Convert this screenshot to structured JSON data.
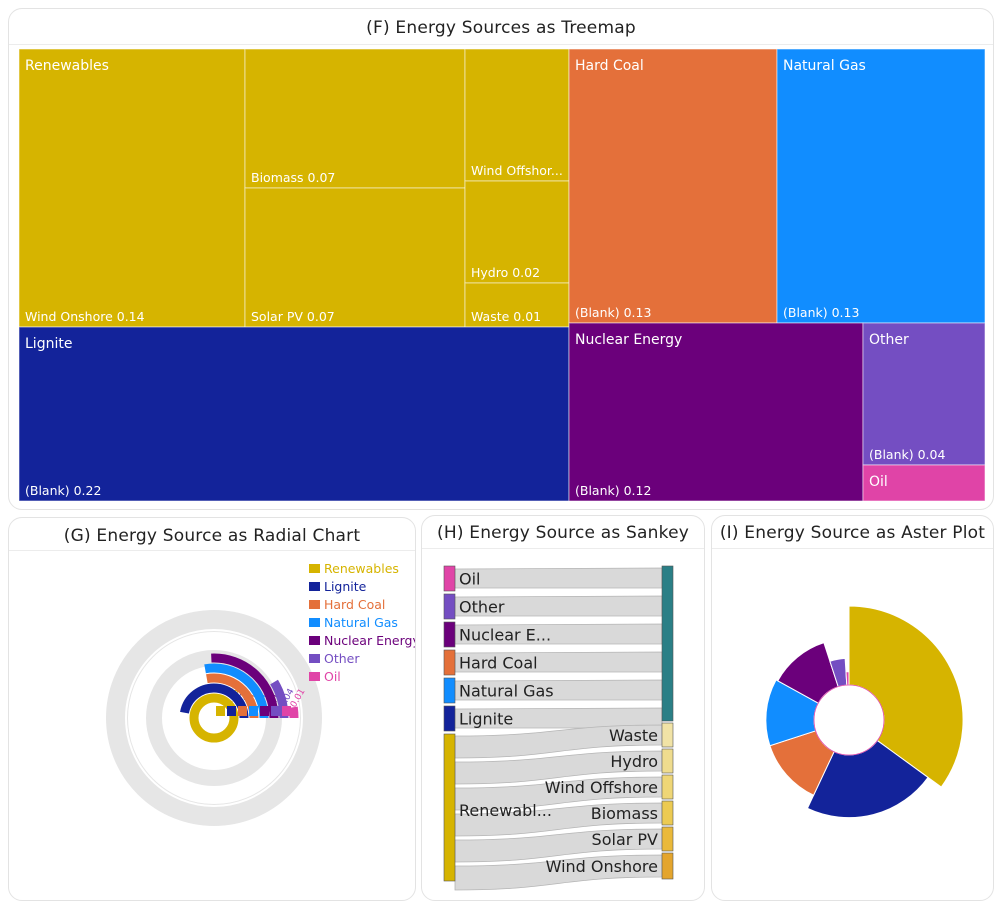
{
  "panels": {
    "treemap_title": "(F) Energy Sources as Treemap",
    "radial_title": "(G) Energy Source as Radial Chart",
    "sankey_title": "(H) Energy Source as Sankey",
    "aster_title": "(I) Energy Source as Aster Plot"
  },
  "colors": {
    "Renewables": "#d6b400",
    "Lignite": "#13239a",
    "Hard Coal": "#e4703a",
    "Natural Gas": "#118dff",
    "Nuclear Energy": "#6b007b",
    "Other": "#744ec2",
    "Oil": "#e044a7"
  },
  "chart_data": [
    {
      "type": "treemap",
      "title": "(F) Energy Sources as Treemap",
      "groups": [
        {
          "name": "Renewables",
          "children": [
            {
              "name": "Wind Onshore",
              "value": 0.14,
              "label": "Wind Onshore 0.14"
            },
            {
              "name": "Biomass",
              "value": 0.07,
              "label": "Biomass 0.07"
            },
            {
              "name": "Solar PV",
              "value": 0.07,
              "label": "Solar PV 0.07"
            },
            {
              "name": "Wind Offshore",
              "value": 0.04,
              "label": "Wind Offshor..."
            },
            {
              "name": "Hydro",
              "value": 0.02,
              "label": "Hydro 0.02"
            },
            {
              "name": "Waste",
              "value": 0.01,
              "label": "Waste 0.01"
            }
          ]
        },
        {
          "name": "Lignite",
          "children": [
            {
              "name": "(Blank)",
              "value": 0.22,
              "label": "(Blank) 0.22"
            }
          ]
        },
        {
          "name": "Hard Coal",
          "children": [
            {
              "name": "(Blank)",
              "value": 0.13,
              "label": "(Blank) 0.13"
            }
          ]
        },
        {
          "name": "Natural Gas",
          "children": [
            {
              "name": "(Blank)",
              "value": 0.13,
              "label": "(Blank) 0.13"
            }
          ]
        },
        {
          "name": "Nuclear Energy",
          "children": [
            {
              "name": "(Blank)",
              "value": 0.12,
              "label": "(Blank) 0.12"
            }
          ]
        },
        {
          "name": "Other",
          "children": [
            {
              "name": "(Blank)",
              "value": 0.04,
              "label": "(Blank) 0.04"
            }
          ]
        },
        {
          "name": "Oil",
          "children": [
            {
              "name": "(Blank)",
              "value": 0.01,
              "label": ""
            }
          ]
        }
      ]
    },
    {
      "type": "radial-bar",
      "title": "(G) Energy Source as Radial Chart",
      "legend": [
        "Renewables",
        "Lignite",
        "Hard Coal",
        "Natural Gas",
        "Nuclear Energy",
        "Other",
        "Oil"
      ],
      "legend_position": "top-right",
      "values": {
        "Renewables": 0.35,
        "Lignite": 0.22,
        "Hard Coal": 0.13,
        "Natural Gas": 0.13,
        "Nuclear Energy": 0.12,
        "Other": 0.04,
        "Oil": 0.01
      },
      "max": 0.35
    },
    {
      "type": "sankey",
      "title": "(H) Energy Source as Sankey",
      "sources": [
        {
          "name": "Oil",
          "label": "Oil",
          "value": 0.01
        },
        {
          "name": "Other",
          "label": "Other",
          "value": 0.04
        },
        {
          "name": "Nuclear Energy",
          "label": "Nuclear E...",
          "value": 0.12
        },
        {
          "name": "Hard Coal",
          "label": "Hard Coal",
          "value": 0.13
        },
        {
          "name": "Natural Gas",
          "label": "Natural Gas",
          "value": 0.13
        },
        {
          "name": "Lignite",
          "label": "Lignite",
          "value": 0.22
        },
        {
          "name": "Renewables",
          "label": "Renewabl...",
          "value": 0.35
        }
      ],
      "targets": [
        {
          "name": "Waste",
          "label": "Waste",
          "value": 0.01
        },
        {
          "name": "Hydro",
          "label": "Hydro",
          "value": 0.02
        },
        {
          "name": "Wind Offshore",
          "label": "Wind Offshore",
          "value": 0.04
        },
        {
          "name": "Biomass",
          "label": "Biomass",
          "value": 0.07
        },
        {
          "name": "Solar PV",
          "label": "Solar PV",
          "value": 0.07
        },
        {
          "name": "Wind Onshore",
          "label": "Wind Onshore",
          "value": 0.14
        }
      ]
    },
    {
      "type": "aster",
      "title": "(I) Energy Source as Aster Plot",
      "slices": [
        {
          "name": "Renewables",
          "value": 0.35
        },
        {
          "name": "Lignite",
          "value": 0.22
        },
        {
          "name": "Hard Coal",
          "value": 0.13
        },
        {
          "name": "Natural Gas",
          "value": 0.13
        },
        {
          "name": "Nuclear Energy",
          "value": 0.12
        },
        {
          "name": "Other",
          "value": 0.04
        },
        {
          "name": "Oil",
          "value": 0.01
        }
      ]
    }
  ]
}
